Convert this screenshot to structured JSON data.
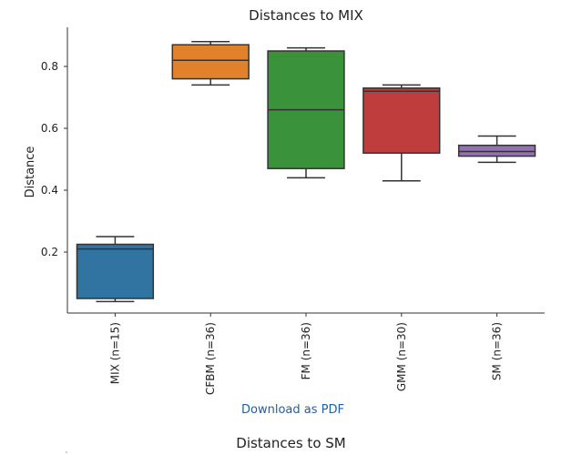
{
  "chart_data": {
    "type": "box",
    "title": "Distances to MIX",
    "xlabel": "",
    "ylabel": "Distance",
    "ylim": [
      0.0,
      0.92
    ],
    "yticks": [
      0.2,
      0.4,
      0.6,
      0.8
    ],
    "grid": false,
    "categories": [
      "MIX (n=15)",
      "CFBM (n=36)",
      "FM (n=36)",
      "GMM (n=30)",
      "SM (n=36)"
    ],
    "boxes": [
      {
        "label": "MIX (n=15)",
        "whisker_low": 0.04,
        "q1": 0.05,
        "median": 0.21,
        "q3": 0.225,
        "whisker_high": 0.25,
        "color": "#3274a1"
      },
      {
        "label": "CFBM (n=36)",
        "whisker_low": 0.74,
        "q1": 0.76,
        "median": 0.82,
        "q3": 0.87,
        "whisker_high": 0.88,
        "color": "#e1812c"
      },
      {
        "label": "FM (n=36)",
        "whisker_low": 0.44,
        "q1": 0.47,
        "median": 0.66,
        "q3": 0.85,
        "whisker_high": 0.86,
        "color": "#3a923a"
      },
      {
        "label": "GMM (n=30)",
        "whisker_low": 0.43,
        "q1": 0.52,
        "median": 0.72,
        "q3": 0.73,
        "whisker_high": 0.74,
        "color": "#c03d3e"
      },
      {
        "label": "SM (n=36)",
        "whisker_low": 0.49,
        "q1": 0.51,
        "median": 0.525,
        "q3": 0.545,
        "whisker_high": 0.575,
        "color": "#9372b2"
      }
    ]
  },
  "links": {
    "download_pdf": "Download as PDF"
  },
  "next_chart": {
    "title": "Distances to SM"
  }
}
